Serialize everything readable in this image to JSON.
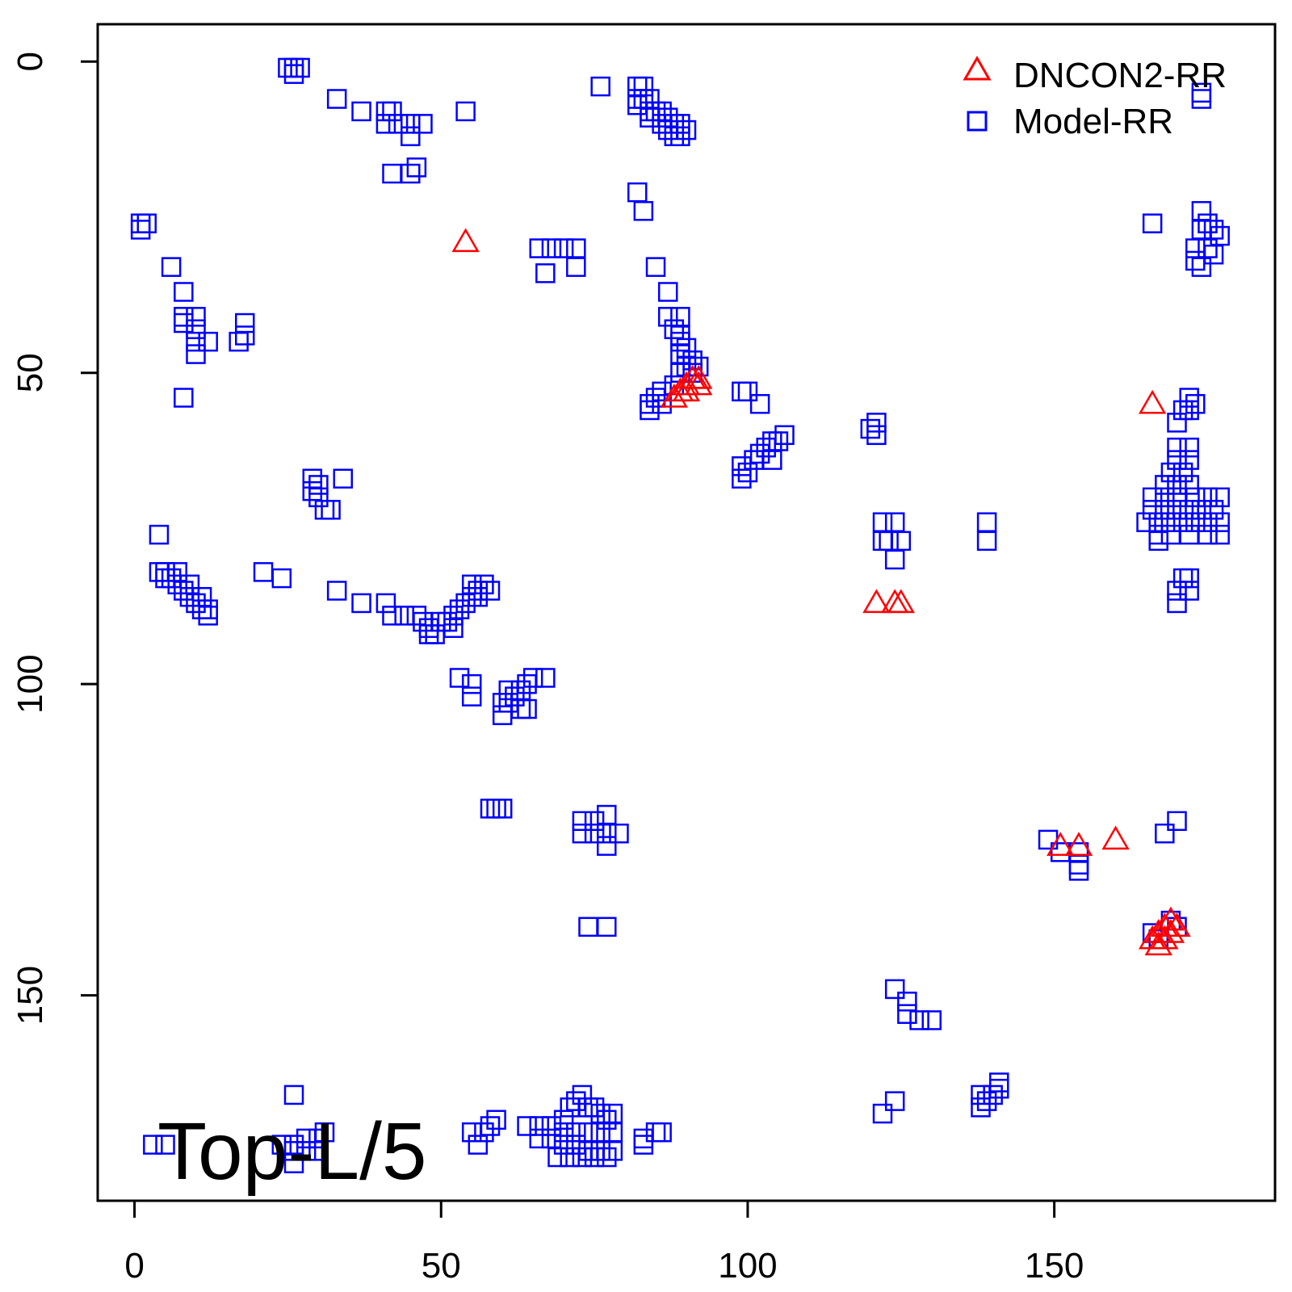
{
  "chart_data": {
    "type": "scatter",
    "annotation": "Top-L/5",
    "xlim": [
      -6,
      186
    ],
    "ylim": [
      183,
      -6
    ],
    "y_reversed": true,
    "x_ticks": [
      0,
      50,
      100,
      150
    ],
    "y_ticks": [
      0,
      50,
      100,
      150
    ],
    "legend_position": "top-right",
    "series": [
      {
        "name": "DNCON2-RR",
        "marker": "triangle",
        "color": "#ff0000",
        "points": [
          [
            54,
            29
          ],
          [
            88,
            54
          ],
          [
            89,
            53
          ],
          [
            90,
            52
          ],
          [
            91,
            51
          ],
          [
            92,
            51
          ],
          [
            90,
            53
          ],
          [
            92,
            52
          ],
          [
            121,
            87
          ],
          [
            124,
            87
          ],
          [
            125,
            87
          ],
          [
            151,
            126
          ],
          [
            154,
            126
          ],
          [
            160,
            125
          ],
          [
            166,
            55
          ],
          [
            166,
            141
          ],
          [
            167,
            140
          ],
          [
            168,
            139
          ],
          [
            169,
            138
          ],
          [
            170,
            139
          ],
          [
            167,
            142
          ],
          [
            168,
            141
          ],
          [
            169,
            140
          ]
        ]
      },
      {
        "name": "Model-RR",
        "marker": "square",
        "color": "#0000ff",
        "points": [
          [
            25,
            1
          ],
          [
            26,
            1
          ],
          [
            27,
            1
          ],
          [
            26,
            2
          ],
          [
            33,
            6
          ],
          [
            37,
            8
          ],
          [
            41,
            8
          ],
          [
            42,
            8
          ],
          [
            41,
            10
          ],
          [
            43,
            10
          ],
          [
            45,
            10
          ],
          [
            47,
            10
          ],
          [
            45,
            12
          ],
          [
            54,
            8
          ],
          [
            42,
            18
          ],
          [
            45,
            18
          ],
          [
            46,
            17
          ],
          [
            76,
            4
          ],
          [
            82,
            4
          ],
          [
            83,
            4
          ],
          [
            82,
            6
          ],
          [
            83,
            6
          ],
          [
            84,
            6
          ],
          [
            82,
            7
          ],
          [
            84,
            8
          ],
          [
            85,
            8
          ],
          [
            86,
            8
          ],
          [
            84,
            9
          ],
          [
            86,
            10
          ],
          [
            87,
            9
          ],
          [
            88,
            10
          ],
          [
            87,
            11
          ],
          [
            89,
            10
          ],
          [
            88,
            12
          ],
          [
            89,
            12
          ],
          [
            90,
            11
          ],
          [
            82,
            21
          ],
          [
            83,
            24
          ],
          [
            1,
            26
          ],
          [
            2,
            26
          ],
          [
            1,
            27
          ],
          [
            6,
            33
          ],
          [
            8,
            37
          ],
          [
            8,
            41
          ],
          [
            10,
            41
          ],
          [
            8,
            42
          ],
          [
            10,
            43
          ],
          [
            12,
            45
          ],
          [
            10,
            45
          ],
          [
            10,
            47
          ],
          [
            17,
            45
          ],
          [
            18,
            42
          ],
          [
            18,
            44
          ],
          [
            8,
            54
          ],
          [
            66,
            30
          ],
          [
            68,
            30
          ],
          [
            70,
            30
          ],
          [
            72,
            30
          ],
          [
            67,
            34
          ],
          [
            72,
            33
          ],
          [
            85,
            33
          ],
          [
            87,
            37
          ],
          [
            87,
            41
          ],
          [
            89,
            41
          ],
          [
            88,
            43
          ],
          [
            89,
            44
          ],
          [
            89,
            45
          ],
          [
            90,
            46
          ],
          [
            89,
            47
          ],
          [
            91,
            48
          ],
          [
            90,
            49
          ],
          [
            92,
            49
          ],
          [
            89,
            50
          ],
          [
            91,
            50
          ],
          [
            88,
            52
          ],
          [
            86,
            53
          ],
          [
            85,
            54
          ],
          [
            84,
            55
          ],
          [
            86,
            55
          ],
          [
            84,
            56
          ],
          [
            100,
            53
          ],
          [
            102,
            55
          ],
          [
            99,
            53
          ],
          [
            99,
            65
          ],
          [
            101,
            64
          ],
          [
            102,
            63
          ],
          [
            103,
            62
          ],
          [
            104,
            61
          ],
          [
            105,
            61
          ],
          [
            106,
            60
          ],
          [
            100,
            66
          ],
          [
            99,
            67
          ],
          [
            104,
            64
          ],
          [
            120,
            59
          ],
          [
            121,
            58
          ],
          [
            121,
            60
          ],
          [
            29,
            67
          ],
          [
            29,
            69
          ],
          [
            30,
            68
          ],
          [
            30,
            70
          ],
          [
            32,
            72
          ],
          [
            34,
            67
          ],
          [
            31,
            72
          ],
          [
            4,
            76
          ],
          [
            4,
            82
          ],
          [
            5,
            82
          ],
          [
            6,
            83
          ],
          [
            7,
            84
          ],
          [
            8,
            85
          ],
          [
            9,
            86
          ],
          [
            10,
            87
          ],
          [
            11,
            88
          ],
          [
            12,
            89
          ],
          [
            5,
            83
          ],
          [
            7,
            82
          ],
          [
            9,
            84
          ],
          [
            11,
            86
          ],
          [
            12,
            88
          ],
          [
            21,
            82
          ],
          [
            24,
            83
          ],
          [
            33,
            85
          ],
          [
            37,
            87
          ],
          [
            41,
            87
          ],
          [
            42,
            89
          ],
          [
            44,
            89
          ],
          [
            46,
            89
          ],
          [
            47,
            90
          ],
          [
            48,
            91
          ],
          [
            50,
            90
          ],
          [
            51,
            90
          ],
          [
            52,
            89
          ],
          [
            53,
            88
          ],
          [
            54,
            87
          ],
          [
            55,
            86
          ],
          [
            56,
            85
          ],
          [
            57,
            84
          ],
          [
            58,
            85
          ],
          [
            52,
            91
          ],
          [
            48,
            92
          ],
          [
            49,
            92
          ],
          [
            55,
            84
          ],
          [
            56,
            86
          ],
          [
            122,
            74
          ],
          [
            124,
            74
          ],
          [
            122,
            77
          ],
          [
            123,
            77
          ],
          [
            125,
            77
          ],
          [
            124,
            80
          ],
          [
            139,
            74
          ],
          [
            139,
            77
          ],
          [
            170,
            64
          ],
          [
            172,
            64
          ],
          [
            169,
            66
          ],
          [
            171,
            66
          ],
          [
            168,
            68
          ],
          [
            170,
            68
          ],
          [
            172,
            68
          ],
          [
            166,
            70
          ],
          [
            168,
            70
          ],
          [
            170,
            70
          ],
          [
            173,
            70
          ],
          [
            175,
            70
          ],
          [
            177,
            70
          ],
          [
            166,
            72
          ],
          [
            168,
            72
          ],
          [
            170,
            72
          ],
          [
            172,
            72
          ],
          [
            174,
            72
          ],
          [
            176,
            72
          ],
          [
            165,
            74
          ],
          [
            167,
            74
          ],
          [
            169,
            74
          ],
          [
            171,
            74
          ],
          [
            173,
            74
          ],
          [
            175,
            74
          ],
          [
            177,
            74
          ],
          [
            167,
            76
          ],
          [
            169,
            76
          ],
          [
            172,
            76
          ],
          [
            175,
            76
          ],
          [
            177,
            76
          ],
          [
            167,
            77
          ],
          [
            170,
            62
          ],
          [
            172,
            62
          ],
          [
            170,
            58
          ],
          [
            172,
            56
          ],
          [
            173,
            55
          ],
          [
            171,
            56
          ],
          [
            172,
            54
          ],
          [
            170,
            85
          ],
          [
            172,
            85
          ],
          [
            171,
            83
          ],
          [
            170,
            87
          ],
          [
            172,
            83
          ],
          [
            166,
            26
          ],
          [
            174,
            24
          ],
          [
            174,
            27
          ],
          [
            175,
            26
          ],
          [
            176,
            27
          ],
          [
            177,
            28
          ],
          [
            173,
            30
          ],
          [
            175,
            30
          ],
          [
            173,
            32
          ],
          [
            174,
            33
          ],
          [
            176,
            31
          ],
          [
            174,
            5
          ],
          [
            174,
            6
          ],
          [
            53,
            99
          ],
          [
            55,
            100
          ],
          [
            55,
            102
          ],
          [
            60,
            103
          ],
          [
            60,
            105
          ],
          [
            61,
            103
          ],
          [
            62,
            102
          ],
          [
            63,
            101
          ],
          [
            64,
            100
          ],
          [
            65,
            99
          ],
          [
            67,
            99
          ],
          [
            63,
            104
          ],
          [
            64,
            104
          ],
          [
            61,
            101
          ],
          [
            58,
            120
          ],
          [
            59,
            120
          ],
          [
            60,
            120
          ],
          [
            73,
            122
          ],
          [
            75,
            122
          ],
          [
            77,
            121
          ],
          [
            73,
            124
          ],
          [
            75,
            124
          ],
          [
            77,
            124
          ],
          [
            79,
            124
          ],
          [
            77,
            126
          ],
          [
            74,
            139
          ],
          [
            77,
            139
          ],
          [
            149,
            125
          ],
          [
            151,
            127
          ],
          [
            154,
            127
          ],
          [
            154,
            129
          ],
          [
            154,
            130
          ],
          [
            168,
            124
          ],
          [
            170,
            122
          ],
          [
            166,
            140
          ],
          [
            167,
            141
          ],
          [
            169,
            138
          ],
          [
            170,
            139
          ],
          [
            124,
            149
          ],
          [
            126,
            151
          ],
          [
            126,
            153
          ],
          [
            128,
            154
          ],
          [
            130,
            154
          ],
          [
            122,
            169
          ],
          [
            124,
            167
          ],
          [
            138,
            166
          ],
          [
            138,
            168
          ],
          [
            139,
            167
          ],
          [
            140,
            166
          ],
          [
            141,
            164
          ],
          [
            141,
            165
          ],
          [
            26,
            166
          ],
          [
            3,
            174
          ],
          [
            5,
            174
          ],
          [
            24,
            174
          ],
          [
            26,
            174
          ],
          [
            28,
            173
          ],
          [
            26,
            175
          ],
          [
            28,
            175
          ],
          [
            30,
            175
          ],
          [
            30,
            173
          ],
          [
            31,
            172
          ],
          [
            26,
            177
          ],
          [
            55,
            172
          ],
          [
            57,
            172
          ],
          [
            58,
            171
          ],
          [
            59,
            170
          ],
          [
            56,
            174
          ],
          [
            64,
            171
          ],
          [
            66,
            171
          ],
          [
            68,
            171
          ],
          [
            66,
            173
          ],
          [
            68,
            173
          ],
          [
            70,
            170
          ],
          [
            71,
            168
          ],
          [
            72,
            167
          ],
          [
            73,
            166
          ],
          [
            74,
            168
          ],
          [
            75,
            168
          ],
          [
            76,
            169
          ],
          [
            77,
            170
          ],
          [
            78,
            169
          ],
          [
            70,
            172
          ],
          [
            72,
            172
          ],
          [
            74,
            172
          ],
          [
            76,
            172
          ],
          [
            78,
            172
          ],
          [
            70,
            174
          ],
          [
            72,
            174
          ],
          [
            74,
            175
          ],
          [
            76,
            175
          ],
          [
            78,
            175
          ],
          [
            69,
            176
          ],
          [
            71,
            176
          ],
          [
            73,
            176
          ],
          [
            75,
            176
          ],
          [
            77,
            176
          ],
          [
            83,
            173
          ],
          [
            83,
            174
          ],
          [
            85,
            172
          ],
          [
            86,
            172
          ]
        ]
      }
    ]
  }
}
